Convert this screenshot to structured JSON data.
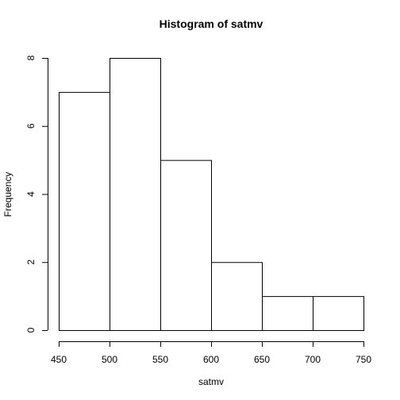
{
  "chart_data": {
    "type": "bar",
    "title": "Histogram of satmv",
    "xlabel": "satmv",
    "ylabel": "Frequency",
    "bins": [
      {
        "from": 450,
        "to": 500,
        "count": 7
      },
      {
        "from": 500,
        "to": 550,
        "count": 8
      },
      {
        "from": 550,
        "to": 600,
        "count": 5
      },
      {
        "from": 600,
        "to": 650,
        "count": 2
      },
      {
        "from": 650,
        "to": 700,
        "count": 1
      },
      {
        "from": 700,
        "to": 750,
        "count": 1
      }
    ],
    "xlim": [
      450,
      750
    ],
    "ylim": [
      0,
      8
    ],
    "xticks": [
      450,
      500,
      550,
      600,
      650,
      700,
      750
    ],
    "yticks": [
      0,
      2,
      4,
      6,
      8
    ],
    "grid": false,
    "bar_fill": "#ffffff",
    "bar_stroke": "#000000"
  }
}
